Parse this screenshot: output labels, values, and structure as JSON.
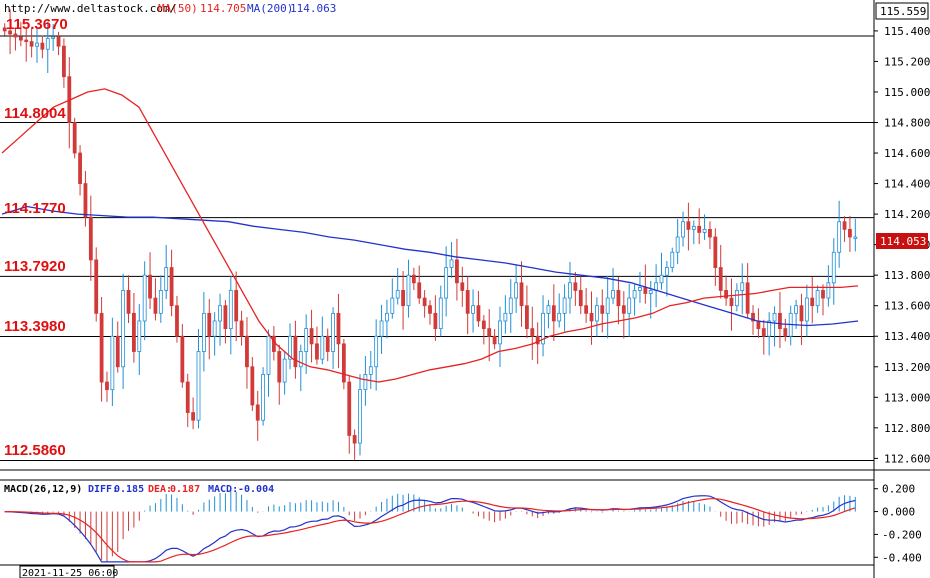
{
  "header": {
    "url": "http://www.deltastock.com/",
    "ma50_label": "MA(50)",
    "ma50_value": "114.705",
    "ma200_label": "MA(200)",
    "ma200_value": "114.063"
  },
  "colors": {
    "up": "#1f8fd6",
    "down": "#d23a3a",
    "ma50": "#e82222",
    "ma200": "#2233cc",
    "level_text": "#e01010",
    "badge_bg": "#c81010",
    "grid": "#000000"
  },
  "levels": [
    "115.3670",
    "114.8004",
    "114.1770",
    "113.7920",
    "113.3980",
    "112.5860"
  ],
  "price_badge": "114.053",
  "top_price": "115.559",
  "macd_header": {
    "name": "MACD(26,12,9)",
    "diff_label": "DIFF:",
    "diff_value": "0.185",
    "dea_label": "DEA:",
    "dea_value": "0.187",
    "macd_label": "MACD:",
    "macd_value": "-0.004"
  },
  "date_label": "2021-11-25 06:00",
  "chart_data": {
    "type": "candlestick",
    "y_ticks": [
      "115.400",
      "115.200",
      "115.000",
      "114.800",
      "114.600",
      "114.400",
      "114.200",
      "114.000",
      "113.800",
      "113.600",
      "113.400",
      "113.200",
      "113.000",
      "112.800",
      "112.600"
    ],
    "ylim": [
      112.55,
      115.55
    ],
    "macd_ticks": [
      "0.200",
      "0.000",
      "-0.200",
      "-0.400"
    ],
    "macd_ylim": [
      -0.45,
      0.25
    ],
    "closes": [
      115.4,
      115.38,
      115.36,
      115.34,
      115.33,
      115.3,
      115.32,
      115.28,
      115.35,
      115.36,
      115.3,
      115.1,
      114.8,
      114.6,
      114.4,
      114.18,
      113.9,
      113.55,
      113.1,
      113.05,
      113.4,
      113.2,
      113.7,
      113.55,
      113.3,
      113.5,
      113.8,
      113.65,
      113.55,
      113.7,
      113.85,
      113.6,
      113.4,
      113.1,
      112.9,
      112.85,
      113.3,
      113.55,
      113.4,
      113.5,
      113.6,
      113.45,
      113.7,
      113.5,
      113.4,
      113.2,
      112.95,
      112.85,
      113.15,
      113.4,
      113.3,
      113.1,
      113.25,
      113.4,
      113.2,
      113.3,
      113.45,
      113.35,
      113.25,
      113.4,
      113.3,
      113.55,
      113.35,
      113.1,
      112.75,
      112.7,
      113.05,
      113.15,
      113.2,
      113.4,
      113.5,
      113.55,
      113.65,
      113.7,
      113.6,
      113.8,
      113.75,
      113.65,
      113.6,
      113.55,
      113.45,
      113.65,
      113.85,
      113.9,
      113.75,
      113.7,
      113.55,
      113.6,
      113.5,
      113.45,
      113.4,
      113.35,
      113.5,
      113.55,
      113.65,
      113.75,
      113.6,
      113.45,
      113.4,
      113.35,
      113.55,
      113.6,
      113.5,
      113.55,
      113.65,
      113.75,
      113.7,
      113.6,
      113.55,
      113.5,
      113.6,
      113.55,
      113.65,
      113.7,
      113.6,
      113.55,
      113.65,
      113.7,
      113.72,
      113.68,
      113.7,
      113.75,
      113.8,
      113.85,
      113.95,
      114.05,
      114.15,
      114.1,
      114.12,
      114.08,
      114.1,
      114.05,
      113.85,
      113.7,
      113.65,
      113.6,
      113.7,
      113.75,
      113.55,
      113.5,
      113.45,
      113.4,
      113.5,
      113.55,
      113.45,
      113.4,
      113.55,
      113.6,
      113.5,
      113.65,
      113.6,
      113.7,
      113.65,
      113.75,
      113.95,
      114.15,
      114.1,
      114.05,
      114.05
    ],
    "ma50": [
      114.6,
      114.7,
      114.8,
      114.9,
      114.95,
      115.0,
      115.02,
      114.98,
      114.9,
      114.7,
      114.5,
      114.3,
      114.1,
      113.9,
      113.7,
      113.5,
      113.35,
      113.25,
      113.2,
      113.18,
      113.15,
      113.12,
      113.1,
      113.12,
      113.15,
      113.18,
      113.2,
      113.22,
      113.25,
      113.3,
      113.32,
      113.35,
      113.4,
      113.43,
      113.45,
      113.48,
      113.5,
      113.52,
      113.55,
      113.6,
      113.62,
      113.65,
      113.66,
      113.67,
      113.68,
      113.7,
      113.72,
      113.72,
      113.72,
      113.72,
      113.73
    ],
    "ma200": [
      114.2,
      114.25,
      114.22,
      114.2,
      114.19,
      114.18,
      114.18,
      114.17,
      114.16,
      114.15,
      114.12,
      114.1,
      114.08,
      114.05,
      114.03,
      114.0,
      113.97,
      113.95,
      113.92,
      113.9,
      113.88,
      113.85,
      113.82,
      113.8,
      113.78,
      113.75,
      113.7,
      113.65,
      113.6,
      113.55,
      113.5,
      113.48,
      113.47,
      113.48,
      113.5
    ]
  }
}
